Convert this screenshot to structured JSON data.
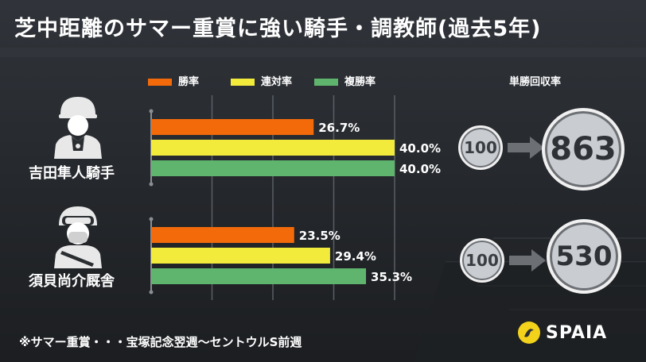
{
  "title": "芝中距離のサマー重賞に強い騎手・調教師(過去5年)",
  "legend": [
    {
      "label": "勝率",
      "color": "#f26a0a"
    },
    {
      "label": "連対率",
      "color": "#f2eb3c"
    },
    {
      "label": "複勝率",
      "color": "#5fb56d"
    }
  ],
  "return_column_label": "単勝回収率",
  "footnote": "※サマー重賞・・・宝塚記念翌週〜セントウルS前週",
  "brand": "SPAIA",
  "people": [
    {
      "name": "吉田隼人騎手",
      "icon": "jockey-icon",
      "base": "100",
      "return_rate": "863"
    },
    {
      "name": "須貝尚介厩舎",
      "icon": "trainer-icon",
      "base": "100",
      "return_rate": "530"
    }
  ],
  "chart_data": {
    "type": "bar",
    "orientation": "horizontal",
    "title": "芝中距離のサマー重賞に強い騎手・調教師(過去5年)",
    "categories": [
      "吉田隼人騎手",
      "須貝尚介厩舎"
    ],
    "series": [
      {
        "name": "勝率",
        "color": "#f26a0a",
        "values": [
          26.7,
          23.5
        ],
        "labels": [
          "26.7%",
          "23.5%"
        ]
      },
      {
        "name": "連対率",
        "color": "#f2eb3c",
        "values": [
          40.0,
          29.4
        ],
        "labels": [
          "40.0%",
          "29.4%"
        ]
      },
      {
        "name": "複勝率",
        "color": "#5fb56d",
        "values": [
          40.0,
          35.3
        ],
        "labels": [
          "40.0%",
          "35.3%"
        ]
      }
    ],
    "xlim": [
      0,
      40
    ],
    "grid": true,
    "legend_position": "top"
  }
}
